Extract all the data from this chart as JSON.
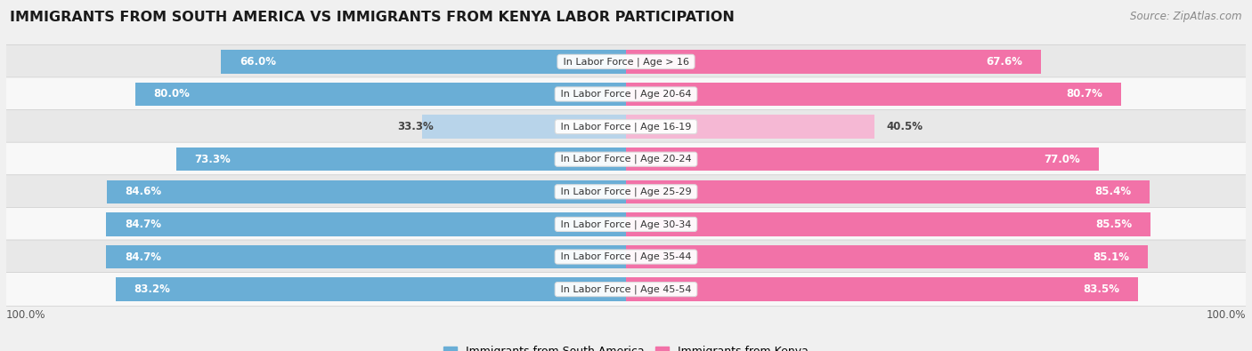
{
  "title": "IMMIGRANTS FROM SOUTH AMERICA VS IMMIGRANTS FROM KENYA LABOR PARTICIPATION",
  "source": "Source: ZipAtlas.com",
  "categories": [
    "In Labor Force | Age > 16",
    "In Labor Force | Age 20-64",
    "In Labor Force | Age 16-19",
    "In Labor Force | Age 20-24",
    "In Labor Force | Age 25-29",
    "In Labor Force | Age 30-34",
    "In Labor Force | Age 35-44",
    "In Labor Force | Age 45-54"
  ],
  "south_america": [
    66.0,
    80.0,
    33.3,
    73.3,
    84.6,
    84.7,
    84.7,
    83.2
  ],
  "kenya": [
    67.6,
    80.7,
    40.5,
    77.0,
    85.4,
    85.5,
    85.1,
    83.5
  ],
  "sa_color": "#6AAED6",
  "sa_color_light": "#B8D4EA",
  "kenya_color": "#F272A8",
  "kenya_color_light": "#F5B8D4",
  "bar_height": 0.72,
  "bg_color": "#f0f0f0",
  "row_bg_even": "#e8e8e8",
  "row_bg_odd": "#f8f8f8",
  "legend_sa": "Immigrants from South America",
  "legend_kenya": "Immigrants from Kenya",
  "max_val": 100.0,
  "title_fontsize": 11.5,
  "label_fontsize": 8.0,
  "value_fontsize": 8.5
}
